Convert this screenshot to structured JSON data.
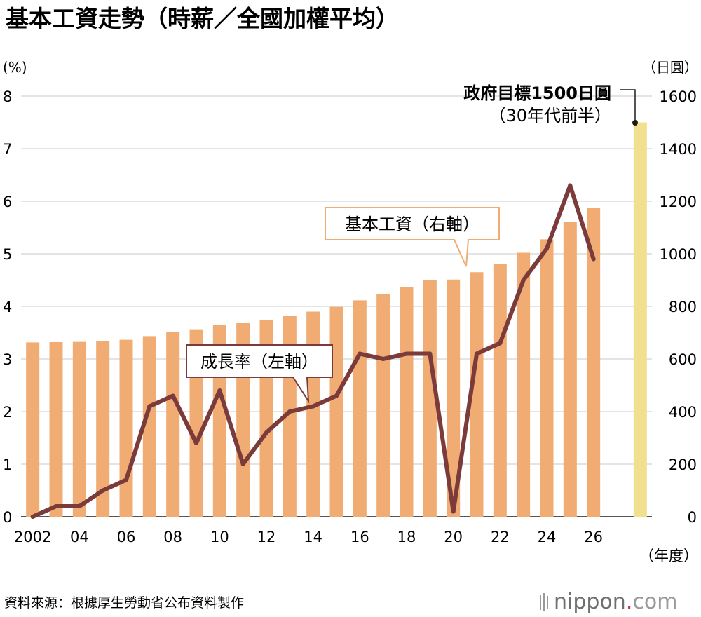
{
  "title": "基本工資走勢（時薪／全國加權平均）",
  "left_unit": "(%)",
  "right_unit": "（日圓）",
  "x_unit": "（年度）",
  "source": "資料來源：根據厚生勞動省公布資料製作",
  "brand": {
    "name": "nippon",
    "dot": ".",
    "tld": "com"
  },
  "target_label": {
    "line1": "政府目標1500日圓",
    "line2": "（30年代前半）"
  },
  "callouts": {
    "bars": "基本工資（右軸）",
    "line": "成長率（左軸）"
  },
  "colors": {
    "bar": "#f0ac72",
    "line": "#7b3b3b",
    "target": "#f1e08e",
    "grid": "#d4d4d4"
  },
  "chart_data": {
    "type": "bar+line",
    "x_tick_labels": [
      "2002",
      "04",
      "06",
      "08",
      "10",
      "12",
      "14",
      "16",
      "18",
      "20",
      "22",
      "24",
      "26"
    ],
    "years": [
      2002,
      2003,
      2004,
      2005,
      2006,
      2007,
      2008,
      2009,
      2010,
      2011,
      2012,
      2013,
      2014,
      2015,
      2016,
      2017,
      2018,
      2019,
      2020,
      2021,
      2022,
      2023,
      2024,
      2025,
      2026
    ],
    "left_axis": {
      "ylim": [
        0,
        8
      ],
      "ticks": [
        0,
        1,
        2,
        3,
        4,
        5,
        6,
        7,
        8
      ]
    },
    "right_axis": {
      "ylim": [
        0,
        1600
      ],
      "ticks": [
        0,
        200,
        400,
        600,
        800,
        1000,
        1200,
        1400,
        1600
      ]
    },
    "series": [
      {
        "name": "基本工資（右軸）",
        "type": "bar",
        "axis": "right",
        "values": [
          663,
          664,
          665,
          668,
          673,
          687,
          703,
          713,
          730,
          737,
          749,
          764,
          780,
          798,
          823,
          848,
          874,
          901,
          902,
          930,
          961,
          1004,
          1055,
          1121,
          1175
        ]
      },
      {
        "name": "成長率（左軸）",
        "type": "line",
        "axis": "left",
        "values": [
          0.0,
          0.2,
          0.2,
          0.5,
          0.7,
          2.1,
          2.3,
          1.4,
          2.4,
          1.0,
          1.6,
          2.0,
          2.1,
          2.3,
          3.1,
          3.0,
          3.1,
          3.1,
          0.1,
          3.1,
          3.3,
          4.5,
          5.1,
          6.3,
          4.9
        ]
      }
    ],
    "target": {
      "value": 1500,
      "axis": "right"
    },
    "grid": true
  }
}
